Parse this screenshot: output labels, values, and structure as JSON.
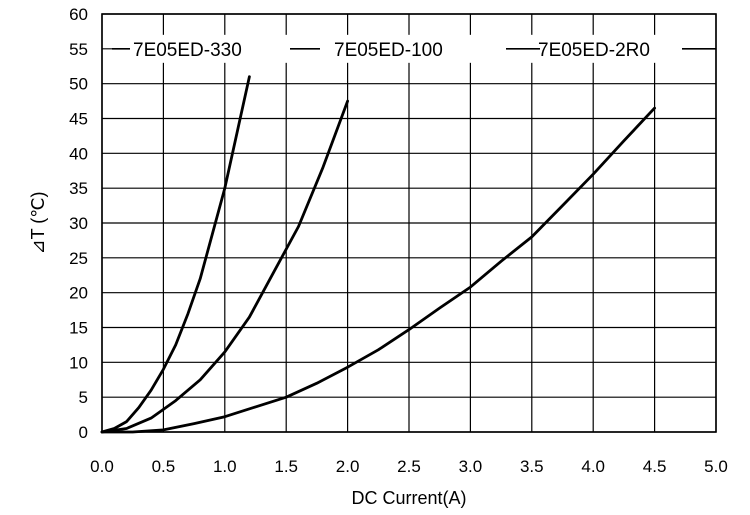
{
  "chart_data": {
    "type": "line",
    "xlabel": "DC Current(A)",
    "ylabel": "⊿T (℃)",
    "xlim": [
      0,
      5
    ],
    "ylim": [
      0,
      60
    ],
    "x_ticks": [
      "0.0",
      "0.5",
      "1.0",
      "1.5",
      "2.0",
      "2.5",
      "3.0",
      "3.5",
      "4.0",
      "4.5",
      "5.0"
    ],
    "y_ticks": [
      "0",
      "5",
      "10",
      "15",
      "20",
      "25",
      "30",
      "35",
      "40",
      "45",
      "50",
      "55",
      "60"
    ],
    "grid": true,
    "legend_position": "top",
    "line_color": "#000000",
    "series": [
      {
        "name": "7E05ED-330",
        "x": [
          0,
          0.1,
          0.2,
          0.3,
          0.4,
          0.5,
          0.6,
          0.7,
          0.8,
          0.9,
          1.0,
          1.1,
          1.2
        ],
        "y": [
          0,
          0.5,
          1.5,
          3.5,
          6,
          9,
          12.5,
          17,
          22,
          28.5,
          35,
          43,
          51
        ]
      },
      {
        "name": "7E05ED-100",
        "x": [
          0,
          0.2,
          0.4,
          0.6,
          0.8,
          1.0,
          1.2,
          1.4,
          1.6,
          1.8,
          2.0
        ],
        "y": [
          0,
          0.5,
          2,
          4.5,
          7.5,
          11.5,
          16.5,
          23,
          29.5,
          38,
          47.5
        ]
      },
      {
        "name": "7E05ED-2R0",
        "x": [
          0,
          0.25,
          0.5,
          0.75,
          1.0,
          1.25,
          1.5,
          1.75,
          2.0,
          2.25,
          2.5,
          2.75,
          3.0,
          3.25,
          3.5,
          3.75,
          4.0,
          4.25,
          4.5
        ],
        "y": [
          0,
          0,
          0.3,
          1.2,
          2.2,
          3.6,
          5,
          7,
          9.3,
          11.8,
          14.7,
          17.8,
          20.8,
          24.5,
          28,
          32.5,
          37,
          41.8,
          46.5
        ]
      }
    ]
  }
}
